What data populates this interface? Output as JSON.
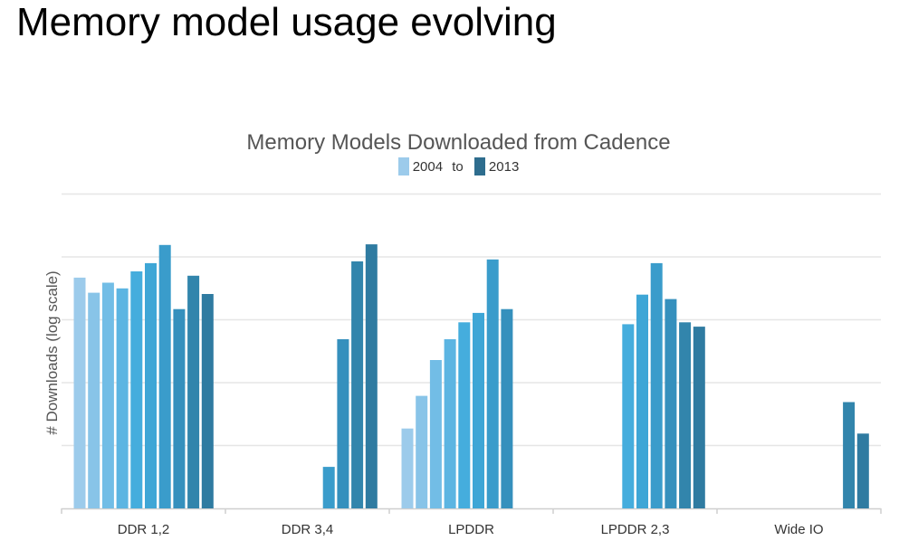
{
  "slide": {
    "title": "Memory model usage evolving"
  },
  "chart_data": {
    "type": "bar",
    "title": "Memory Models Downloaded from Cadence",
    "ylabel": "# Downloads (log scale)",
    "xlabel": "",
    "yscale": "log",
    "ylim": [
      0,
      5
    ],
    "grid": true,
    "legend": {
      "placement": "top-center",
      "start_label": "2004",
      "connector": "to",
      "end_label": "2013",
      "start_color": "#9ccbeb",
      "end_color": "#2e6d8e"
    },
    "categories": [
      "DDR 1,2",
      "DDR 3,4",
      "LPDDR",
      "LPDDR 2,3",
      "Wide IO"
    ],
    "years": [
      "2004",
      "2005",
      "2006",
      "2007",
      "2008",
      "2009",
      "2010",
      "2011",
      "2012",
      "2013"
    ],
    "year_colors": [
      "#9ccbeb",
      "#88c4e8",
      "#72bde6",
      "#5cb5e2",
      "#45addd",
      "#3ea6d6",
      "#3a9ccb",
      "#3590bd",
      "#3285ac",
      "#2f7ba1"
    ],
    "values": [
      [
        3.67,
        3.43,
        3.59,
        3.5,
        3.77,
        3.9,
        4.19,
        3.17,
        3.7,
        3.41
      ],
      [
        null,
        null,
        null,
        null,
        null,
        null,
        0.66,
        2.69,
        3.93,
        4.2
      ],
      [
        1.27,
        1.79,
        2.36,
        2.69,
        2.96,
        3.11,
        3.96,
        3.17,
        null,
        null
      ],
      [
        null,
        null,
        null,
        null,
        2.93,
        3.4,
        3.9,
        3.33,
        2.96,
        2.89
      ],
      [
        null,
        null,
        null,
        null,
        null,
        null,
        null,
        null,
        1.69,
        1.19
      ]
    ]
  }
}
